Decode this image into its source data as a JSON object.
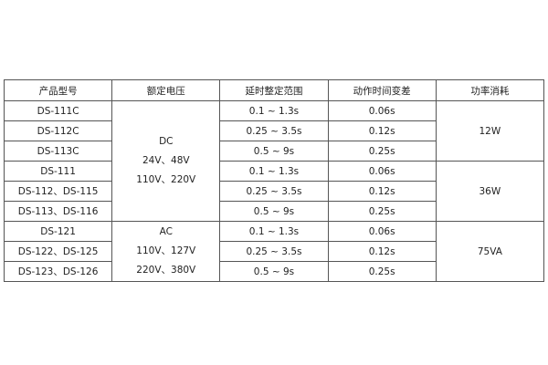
{
  "headers": [
    "产品型号",
    "额定电压",
    "延时整定范围",
    "动作时间变差",
    "功率消耗"
  ],
  "groups": [
    {
      "voltage": [
        "DC",
        "24V、48V",
        "110V、220V"
      ],
      "rows": [
        {
          "model": "DS-111C",
          "range": "0.1 ~ 1.3s",
          "variance": "0.06s"
        },
        {
          "model": "DS-112C",
          "range": "0.25 ~ 3.5s",
          "variance": "0.12s"
        },
        {
          "model": "DS-113C",
          "range": "0.5 ~ 9s",
          "variance": "0.25s"
        },
        {
          "model": "DS-111",
          "range": "0.1 ~ 1.3s",
          "variance": "0.06s"
        },
        {
          "model": "DS-112、DS-115",
          "range": "0.25 ~ 3.5s",
          "variance": "0.12s"
        },
        {
          "model": "DS-113、DS-116",
          "range": "0.5 ~ 9s",
          "variance": "0.25s"
        }
      ],
      "power": [
        "12W",
        "36W"
      ]
    },
    {
      "voltage": [
        "AC",
        "110V、127V",
        "220V、380V"
      ],
      "rows": [
        {
          "model": "DS-121",
          "range": "0.1 ~ 1.3s",
          "variance": "0.06s"
        },
        {
          "model": "DS-122、DS-125",
          "range": "0.25 ~ 3.5s",
          "variance": "0.12s"
        },
        {
          "model": "DS-123、DS-126",
          "range": "0.5 ~ 9s",
          "variance": "0.25s"
        }
      ],
      "power": [
        "75VA"
      ]
    }
  ]
}
